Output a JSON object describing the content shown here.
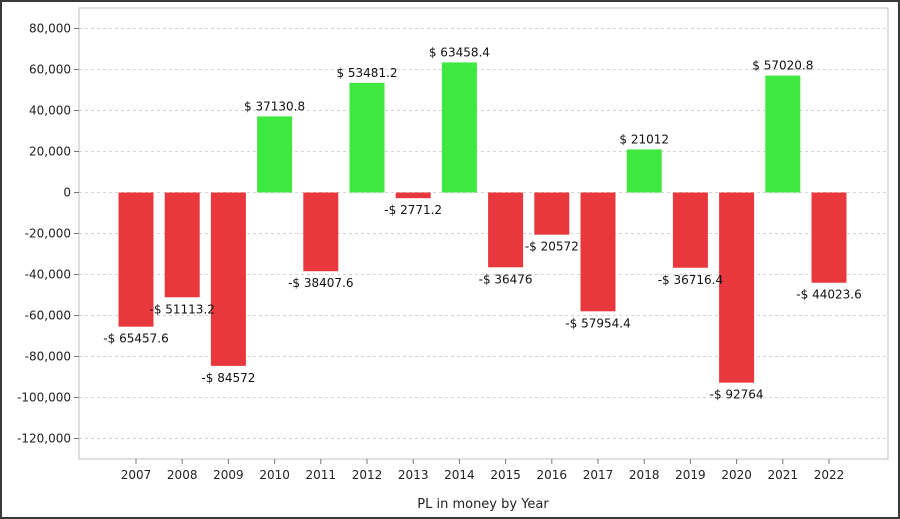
{
  "chart_data": {
    "type": "bar",
    "xlabel": "PL in money by Year",
    "ylabel": "",
    "ylim": [
      -130000,
      90000
    ],
    "yticks": [
      80000,
      60000,
      40000,
      20000,
      0,
      -20000,
      -40000,
      -60000,
      -80000,
      -100000,
      -120000
    ],
    "ytick_labels": [
      "80,000",
      "60,000",
      "40,000",
      "20,000",
      "0",
      "-20,000",
      "-40,000",
      "-60,000",
      "-80,000",
      "-100,000",
      "-120,000"
    ],
    "grid": true,
    "colors": {
      "positive": "#3fe83f",
      "negative": "#e8383d"
    },
    "categories": [
      "2007",
      "2008",
      "2009",
      "2010",
      "2011",
      "2012",
      "2013",
      "2014",
      "2015",
      "2016",
      "2017",
      "2018",
      "2019",
      "2020",
      "2021",
      "2022"
    ],
    "values": [
      -65457.6,
      -51113.2,
      -84572,
      37130.8,
      -38407.6,
      53481.2,
      -2771.2,
      63458.4,
      -36476,
      -20572,
      -57954.4,
      21012,
      -36716.4,
      -92764,
      57020.8,
      -44023.6
    ],
    "data_labels": [
      "-$ 65457.6",
      "-$ 51113.2",
      "-$ 84572",
      "$ 37130.8",
      "-$ 38407.6",
      "$ 53481.2",
      "-$ 2771.2",
      "$ 63458.4",
      "-$ 36476",
      "-$ 20572",
      "-$ 57954.4",
      "$ 21012",
      "-$ 36716.4",
      "-$ 92764",
      "$ 57020.8",
      "-$ 44023.6"
    ]
  }
}
